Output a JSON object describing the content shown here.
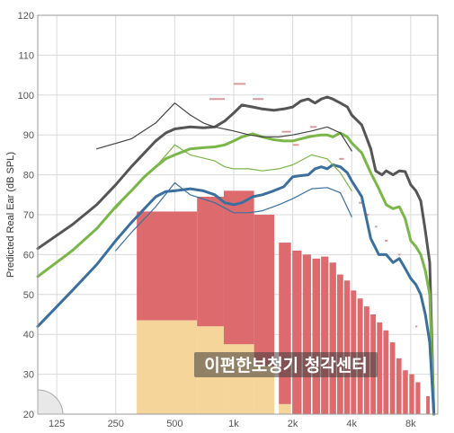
{
  "chart_data": {
    "type": "line",
    "title": "",
    "ylabel": "Predicted Real Ear (dB SPL)",
    "xlabel": "",
    "x_scale": "log",
    "xlim": [
      100,
      11000
    ],
    "ylim": [
      20,
      120
    ],
    "y_ticks": [
      20,
      30,
      40,
      50,
      60,
      70,
      80,
      90,
      100,
      110,
      120
    ],
    "x_ticks": [
      {
        "value": 125,
        "label": "125"
      },
      {
        "value": 250,
        "label": "250"
      },
      {
        "value": 500,
        "label": "500"
      },
      {
        "value": 1000,
        "label": "1k"
      },
      {
        "value": 2000,
        "label": "2k"
      },
      {
        "value": 4000,
        "label": "4k"
      },
      {
        "value": 8000,
        "label": "8k"
      }
    ],
    "grid": true,
    "colors": {
      "loud": "#555555",
      "average": "#7ab648",
      "soft": "#3a6f9e",
      "target": "#444444",
      "bar_upper": "#dd6b6e",
      "bar_lower": "#f5d59a",
      "marker": "#d99a9a"
    },
    "series": [
      {
        "key": "loud",
        "style": "thick",
        "x": [
          100,
          150,
          200,
          250,
          300,
          350,
          400,
          450,
          500,
          600,
          700,
          800,
          900,
          1000,
          1100,
          1250,
          1400,
          1600,
          1800,
          2000,
          2200,
          2400,
          2600,
          2800,
          3000,
          3200,
          3500,
          3800,
          4000,
          4500,
          5000,
          5300,
          5700,
          6000,
          6500,
          7000,
          7500,
          8000,
          8500,
          9000,
          9500,
          10000,
          10500
        ],
        "y": [
          61.5,
          67.5,
          72.5,
          77.5,
          82,
          85.5,
          88.5,
          90.5,
          91.5,
          92,
          91.8,
          92,
          93.5,
          95.5,
          97.5,
          97,
          96.5,
          96.2,
          96.5,
          97,
          98.5,
          99,
          98,
          99,
          99.5,
          99,
          98,
          97,
          95,
          92.5,
          86.5,
          81,
          80,
          81,
          80,
          81,
          80.8,
          77.5,
          76,
          73.5,
          66,
          58,
          20
        ]
      },
      {
        "key": "average",
        "style": "thick",
        "x": [
          100,
          150,
          200,
          250,
          300,
          350,
          400,
          450,
          500,
          600,
          700,
          800,
          900,
          1000,
          1100,
          1250,
          1400,
          1600,
          1800,
          2000,
          2200,
          2400,
          2600,
          2800,
          3000,
          3200,
          3500,
          3800,
          4000,
          4500,
          5000,
          5500,
          6000,
          6500,
          7000,
          7500,
          8000,
          8500,
          9000,
          9500,
          10000,
          10500
        ],
        "y": [
          54.5,
          61,
          66.5,
          72,
          76,
          79.5,
          82,
          84,
          85,
          86.5,
          86.8,
          87,
          87.5,
          88.5,
          89.5,
          90.3,
          89.5,
          88.8,
          88.5,
          88.5,
          89,
          89.5,
          89.8,
          90,
          90,
          89.5,
          90.5,
          89.5,
          88,
          85.5,
          80.5,
          76.5,
          72.5,
          71.5,
          72,
          69,
          63.5,
          62,
          60,
          56,
          50,
          20
        ]
      },
      {
        "key": "soft",
        "style": "thick",
        "x": [
          100,
          150,
          200,
          250,
          300,
          350,
          400,
          450,
          500,
          600,
          700,
          800,
          900,
          1000,
          1100,
          1250,
          1400,
          1600,
          1800,
          2000,
          2200,
          2400,
          2600,
          2800,
          3000,
          3200,
          3500,
          3800,
          4000,
          4500,
          5000,
          5500,
          6000,
          6500,
          7000,
          7500,
          8000,
          8500,
          9000,
          9500,
          10000,
          10500
        ],
        "y": [
          42,
          51,
          57.5,
          63.5,
          68,
          71.5,
          74.5,
          75.8,
          76,
          76.5,
          76,
          75,
          73,
          72.5,
          73,
          74.5,
          75,
          76,
          77,
          79.5,
          79.8,
          80,
          81.5,
          82,
          81.5,
          82.5,
          82,
          80.5,
          78.5,
          74.5,
          64,
          60,
          60,
          58,
          59,
          56.5,
          54,
          52.5,
          50,
          45,
          38,
          20
        ]
      },
      {
        "key": "target-loud",
        "style": "thin",
        "x": [
          200,
          300,
          400,
          500,
          600,
          700,
          800,
          1000,
          1200,
          1400,
          1700,
          2000,
          2500,
          3000,
          3500,
          4000
        ],
        "y": [
          86.5,
          89,
          93,
          98,
          95,
          93,
          92,
          91,
          90,
          89.5,
          89.5,
          90,
          91,
          92,
          90.5,
          86
        ]
      },
      {
        "key": "target-average",
        "style": "thin",
        "x": [
          250,
          300,
          400,
          500,
          600,
          800,
          900,
          1000,
          1200,
          1400,
          1700,
          2000,
          2500,
          3000,
          3500,
          4000
        ],
        "y": [
          71.5,
          76,
          82,
          87.5,
          85,
          83.5,
          82,
          81.5,
          81.5,
          81,
          81.5,
          82.5,
          85,
          84,
          80.5,
          76
        ]
      },
      {
        "key": "target-soft",
        "style": "thin",
        "x": [
          250,
          300,
          400,
          500,
          600,
          800,
          1000,
          1200,
          1400,
          1700,
          2000,
          2500,
          3000,
          3500,
          4000
        ],
        "y": [
          61,
          65.5,
          72,
          78,
          75,
          73,
          70.5,
          70.5,
          71,
          72.5,
          74,
          76.5,
          76.8,
          75.5,
          69.5
        ]
      }
    ],
    "bars": [
      {
        "x0": 320,
        "x1": 650,
        "top": 70.8,
        "split": 43.5
      },
      {
        "x0": 650,
        "x1": 890,
        "top": 74.5,
        "split": 42
      },
      {
        "x0": 890,
        "x1": 1270,
        "top": 76,
        "split": 37.5
      },
      {
        "x0": 1270,
        "x1": 1610,
        "top": 70,
        "split": 32
      },
      {
        "x0": 1700,
        "x1": 1960,
        "top": 63,
        "split": 22.5
      },
      {
        "x0": 1990,
        "x1": 2220,
        "top": 61
      },
      {
        "x0": 2250,
        "x1": 2480,
        "top": 60
      },
      {
        "x0": 2520,
        "x1": 2760,
        "top": 59
      },
      {
        "x0": 2790,
        "x1": 3040,
        "top": 59.5
      },
      {
        "x0": 3080,
        "x1": 3330,
        "top": 58
      },
      {
        "x0": 3370,
        "x1": 3620,
        "top": 55
      },
      {
        "x0": 3660,
        "x1": 3910,
        "top": 53.5
      },
      {
        "x0": 3960,
        "x1": 4220,
        "top": 51
      },
      {
        "x0": 4280,
        "x1": 4560,
        "top": 49
      },
      {
        "x0": 4620,
        "x1": 4920,
        "top": 47
      },
      {
        "x0": 4990,
        "x1": 5310,
        "top": 45
      },
      {
        "x0": 5380,
        "x1": 5720,
        "top": 43
      },
      {
        "x0": 5800,
        "x1": 6170,
        "top": 41
      },
      {
        "x0": 6270,
        "x1": 6660,
        "top": 38
      },
      {
        "x0": 6760,
        "x1": 7180,
        "top": 34
      },
      {
        "x0": 7300,
        "x1": 7740,
        "top": 31
      },
      {
        "x0": 7870,
        "x1": 8330,
        "top": 30
      },
      {
        "x0": 8480,
        "x1": 8950,
        "top": 28
      },
      {
        "x0": 9600,
        "x1": 10000,
        "top": 24.5
      }
    ],
    "markers": [
      {
        "x0": 750,
        "x1": 900,
        "y": 99
      },
      {
        "x0": 1000,
        "x1": 1150,
        "y": 102.8
      },
      {
        "x0": 1250,
        "x1": 1420,
        "y": 99
      },
      {
        "x0": 1760,
        "x1": 1960,
        "y": 90.8
      },
      {
        "x0": 2450,
        "x1": 2650,
        "y": 92
      },
      {
        "x0": 2000,
        "x1": 2150,
        "y": 87.5
      },
      {
        "x0": 3450,
        "x1": 3650,
        "y": 84
      },
      {
        "x0": 4350,
        "x1": 4550,
        "y": 73
      },
      {
        "x0": 4750,
        "x1": 4900,
        "y": 70
      },
      {
        "x0": 5250,
        "x1": 5400,
        "y": 67
      },
      {
        "x0": 5900,
        "x1": 6100,
        "y": 63.5
      },
      {
        "x0": 6900,
        "x1": 7100,
        "y": 60
      },
      {
        "x0": 8450,
        "x1": 8650,
        "y": 42
      }
    ]
  },
  "watermark": "이편한보청기 청각센터"
}
